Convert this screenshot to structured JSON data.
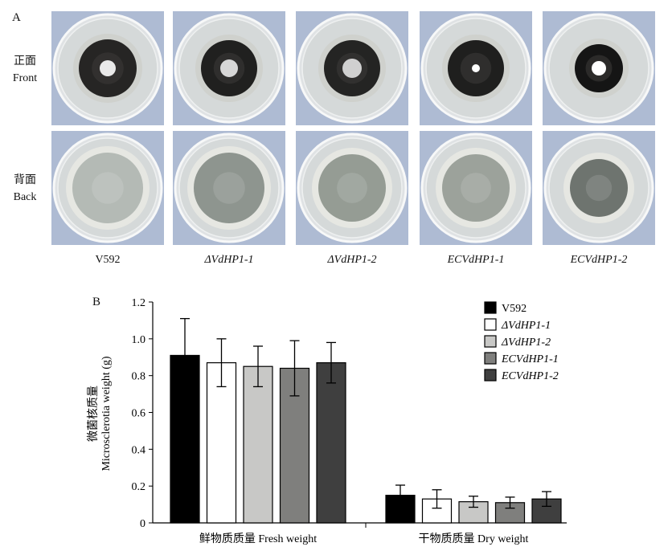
{
  "panel_a": {
    "letter": "A",
    "row_labels": [
      {
        "zh": "正面",
        "en": "Front"
      },
      {
        "zh": "背面",
        "en": "Back"
      }
    ],
    "strains": [
      {
        "label": "V592",
        "italic": false
      },
      {
        "label": "ΔVdHP1-1",
        "italic": true
      },
      {
        "label": "ΔVdHP1-2",
        "italic": true
      },
      {
        "label": "ECVdHP1-1",
        "italic": true
      },
      {
        "label": "ECVdHP1-2",
        "italic": true
      }
    ]
  },
  "panel_b": {
    "letter": "B"
  },
  "chart_data": {
    "type": "bar",
    "ylabel_zh": "微菌核质量",
    "ylabel_en": "Microsclerotia weight (g)",
    "ylim": [
      0,
      1.2
    ],
    "yticks": [
      "0",
      "0.2",
      "0.4",
      "0.6",
      "0.8",
      "1.0",
      "1.2"
    ],
    "categories": [
      "鲜物质质量 Fresh weight",
      "干物质质量 Dry weight"
    ],
    "legend_position": "top-right",
    "series": [
      {
        "name": "V592",
        "italic": false,
        "color": "#000000",
        "values": [
          0.91,
          0.15
        ],
        "errors": [
          0.2,
          0.055
        ]
      },
      {
        "name": "ΔVdHP1-1",
        "italic": true,
        "color": "#ffffff",
        "values": [
          0.87,
          0.13
        ],
        "errors": [
          0.13,
          0.05
        ]
      },
      {
        "name": "ΔVdHP1-2",
        "italic": true,
        "color": "#c8c8c6",
        "values": [
          0.85,
          0.115
        ],
        "errors": [
          0.11,
          0.03
        ]
      },
      {
        "name": "ECVdHP1-1",
        "italic": true,
        "color": "#7f7f7d",
        "values": [
          0.84,
          0.11
        ],
        "errors": [
          0.15,
          0.03
        ]
      },
      {
        "name": "ECVdHP1-2",
        "italic": true,
        "color": "#3f3f3f",
        "values": [
          0.87,
          0.13
        ],
        "errors": [
          0.11,
          0.04
        ]
      }
    ]
  }
}
